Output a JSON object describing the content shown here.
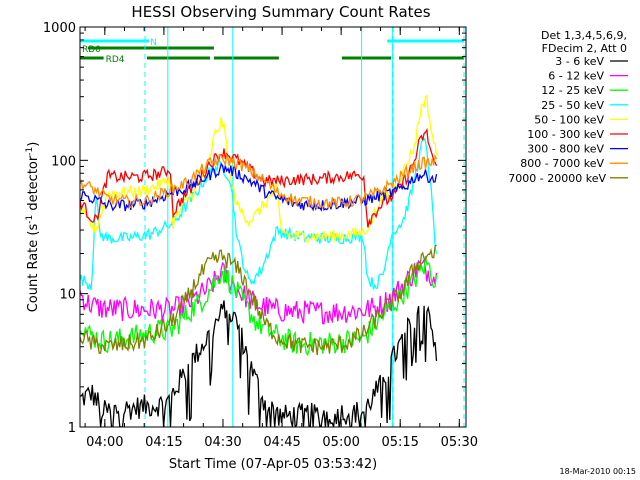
{
  "chart_data": {
    "type": "line",
    "title": "HESSI Observing Summary Count Rates",
    "xlabel": "Start Time (07-Apr-05 03:53:42)",
    "ylabel": "Count Rate (s",
    "ylabel_sup1": "-1",
    "ylabel_mid": " detector",
    "ylabel_sup2": "-1",
    "ylabel_end": ")",
    "yscale": "log",
    "xlim_min": [
      0,
      98
    ],
    "ylim": [
      1,
      1000
    ],
    "ytick_values": [
      1,
      10,
      100,
      1000
    ],
    "ytick_labels": [
      "1",
      "10",
      "100",
      "1000"
    ],
    "xtick_values": [
      6.3,
      21.3,
      36.3,
      51.3,
      66.3,
      81.3,
      96.3
    ],
    "xtick_labels": [
      "04:00",
      "04:15",
      "04:30",
      "04:45",
      "05:00",
      "05:15",
      "05:30"
    ],
    "timestamp": "18-Mar-2010 00:15",
    "legend_header": [
      "Det 1,3,4,5,6,9,",
      "FDecim 2, Att 0"
    ],
    "flags": [
      {
        "label": "N",
        "color": "#00ffff",
        "segments": [
          [
            0,
            17.5
          ],
          [
            78,
            97.5
          ]
        ],
        "label_at": 17.8
      },
      {
        "label": "RD0",
        "color": "#008000",
        "segments": [
          [
            2,
            34
          ]
        ],
        "label_at": 0.5,
        "gap_label": true
      },
      {
        "label": "RD4",
        "color": "#008000",
        "segments": [
          [
            0,
            6
          ],
          [
            17,
            33
          ],
          [
            34,
            50.5
          ],
          [
            66.5,
            79
          ],
          [
            81,
            97.5
          ]
        ],
        "label_at": 6.5
      }
    ],
    "saa_lines_solid": [
      0,
      22.3,
      38.8,
      71.5,
      79.3
    ],
    "saa_lines_dashed": [
      16.5,
      79.5,
      97.5
    ],
    "series": [
      {
        "name": "3 - 6 keV",
        "color": "#000000",
        "points": [
          [
            0,
            1.6
          ],
          [
            3,
            1.8
          ],
          [
            6,
            1.3
          ],
          [
            22,
            1.5
          ],
          [
            28,
            3
          ],
          [
            33,
            5
          ],
          [
            37,
            8
          ],
          [
            40,
            6
          ],
          [
            43,
            3
          ],
          [
            47,
            1.5
          ],
          [
            51,
            1.2
          ],
          [
            72,
            1.3
          ],
          [
            76,
            2
          ],
          [
            80,
            3.5
          ],
          [
            84,
            6
          ],
          [
            87,
            9
          ],
          [
            89,
            7
          ],
          [
            90.5,
            3
          ]
        ]
      },
      {
        "name": "6 - 12 keV",
        "color": "#ff00ff",
        "points": [
          [
            0,
            10
          ],
          [
            2,
            8.5
          ],
          [
            5,
            7.8
          ],
          [
            10,
            7.6
          ],
          [
            20,
            7.6
          ],
          [
            23,
            7.5
          ],
          [
            27,
            8.2
          ],
          [
            31,
            10
          ],
          [
            34,
            12
          ],
          [
            36,
            14.5
          ],
          [
            38,
            12.5
          ],
          [
            41,
            10
          ],
          [
            45,
            8.3
          ],
          [
            50,
            7.5
          ],
          [
            55,
            7.3
          ],
          [
            65,
            7.3
          ],
          [
            72,
            7.5
          ],
          [
            76,
            8
          ],
          [
            80,
            10
          ],
          [
            83,
            12.5
          ],
          [
            86,
            16
          ],
          [
            88,
            15
          ],
          [
            90.5,
            13
          ]
        ]
      },
      {
        "name": "12 - 25 keV",
        "color": "#00ff00",
        "points": [
          [
            0,
            6.5
          ],
          [
            2,
            5
          ],
          [
            6,
            4.4
          ],
          [
            12,
            4.6
          ],
          [
            20,
            5.3
          ],
          [
            23,
            5.2
          ],
          [
            27,
            7
          ],
          [
            31,
            9
          ],
          [
            34,
            12
          ],
          [
            36,
            15
          ],
          [
            38,
            12.5
          ],
          [
            41,
            9
          ],
          [
            45,
            6
          ],
          [
            50,
            4.8
          ],
          [
            55,
            4.2
          ],
          [
            65,
            4.3
          ],
          [
            72,
            4.6
          ],
          [
            76,
            6.5
          ],
          [
            80,
            8.5
          ],
          [
            83,
            11
          ],
          [
            86,
            14
          ],
          [
            88,
            17
          ],
          [
            90.5,
            12
          ]
        ]
      },
      {
        "name": "25 - 50 keV",
        "color": "#00ffff",
        "points": [
          [
            0,
            13
          ],
          [
            2,
            12
          ],
          [
            3,
            11.5
          ],
          [
            4,
            60
          ],
          [
            5,
            28
          ],
          [
            7,
            26
          ],
          [
            12,
            26
          ],
          [
            18,
            28
          ],
          [
            22,
            32
          ],
          [
            23,
            33
          ],
          [
            25,
            38
          ],
          [
            28,
            50
          ],
          [
            30,
            60
          ],
          [
            32,
            75
          ],
          [
            34,
            88
          ],
          [
            36,
            90
          ],
          [
            38,
            75
          ],
          [
            39,
            45
          ],
          [
            40,
            25
          ],
          [
            42,
            15
          ],
          [
            43,
            12
          ],
          [
            46,
            15
          ],
          [
            50,
            30
          ],
          [
            51,
            29
          ],
          [
            55,
            27
          ],
          [
            62,
            26
          ],
          [
            65,
            26
          ],
          [
            72,
            27
          ],
          [
            73,
            13
          ],
          [
            75,
            11.5
          ],
          [
            77,
            14
          ],
          [
            79,
            28
          ],
          [
            82,
            35
          ],
          [
            84,
            55
          ],
          [
            86,
            100
          ],
          [
            87,
            140
          ],
          [
            88,
            125
          ],
          [
            89,
            65
          ],
          [
            90.5,
            18
          ]
        ]
      },
      {
        "name": "50 - 100 keV",
        "color": "#ffff00",
        "points": [
          [
            0,
            42
          ],
          [
            4,
            30
          ],
          [
            7,
            56
          ],
          [
            10,
            58
          ],
          [
            15,
            58
          ],
          [
            20,
            65
          ],
          [
            23,
            73
          ],
          [
            23.5,
            33
          ],
          [
            26,
            45
          ],
          [
            30,
            65
          ],
          [
            33,
            100
          ],
          [
            34,
            150
          ],
          [
            35,
            170
          ],
          [
            36,
            200
          ],
          [
            37,
            150
          ],
          [
            38,
            75
          ],
          [
            40,
            45
          ],
          [
            43,
            35
          ],
          [
            45,
            40
          ],
          [
            50,
            62
          ],
          [
            51,
            30
          ],
          [
            54,
            27
          ],
          [
            60,
            27
          ],
          [
            65,
            27
          ],
          [
            72,
            29
          ],
          [
            74,
            35
          ],
          [
            76,
            48
          ],
          [
            80,
            63
          ],
          [
            83,
            95
          ],
          [
            85,
            130
          ],
          [
            86,
            200
          ],
          [
            87,
            270
          ],
          [
            88,
            290
          ],
          [
            89,
            180
          ],
          [
            90.5,
            110
          ]
        ]
      },
      {
        "name": "100 - 300 keV",
        "color": "#ff0000",
        "points": [
          [
            0,
            50
          ],
          [
            2,
            40
          ],
          [
            4,
            35
          ],
          [
            7,
            76
          ],
          [
            10,
            75
          ],
          [
            15,
            75
          ],
          [
            20,
            79
          ],
          [
            23,
            86
          ],
          [
            23.5,
            40
          ],
          [
            26,
            52
          ],
          [
            30,
            70
          ],
          [
            33,
            95
          ],
          [
            36,
            115
          ],
          [
            38,
            110
          ],
          [
            40,
            100
          ],
          [
            43,
            85
          ],
          [
            47,
            70
          ],
          [
            50,
            70
          ],
          [
            51,
            70
          ],
          [
            55,
            72
          ],
          [
            60,
            72
          ],
          [
            65,
            75
          ],
          [
            72,
            78
          ],
          [
            73,
            34
          ],
          [
            76,
            45
          ],
          [
            80,
            56
          ],
          [
            83,
            75
          ],
          [
            85,
            100
          ],
          [
            86,
            130
          ],
          [
            87,
            150
          ],
          [
            88,
            160
          ],
          [
            89,
            120
          ],
          [
            90.5,
            85
          ]
        ]
      },
      {
        "name": "300 - 800 keV",
        "color": "#0000ff",
        "points": [
          [
            0,
            56
          ],
          [
            3,
            52
          ],
          [
            7,
            46
          ],
          [
            12,
            46
          ],
          [
            17,
            48
          ],
          [
            20,
            52
          ],
          [
            23,
            57
          ],
          [
            27,
            62
          ],
          [
            30,
            70
          ],
          [
            33,
            78
          ],
          [
            36,
            88
          ],
          [
            38,
            85
          ],
          [
            41,
            77
          ],
          [
            44,
            68
          ],
          [
            47,
            58
          ],
          [
            50,
            52
          ],
          [
            55,
            47
          ],
          [
            62,
            46
          ],
          [
            67,
            48
          ],
          [
            72,
            50
          ],
          [
            76,
            54
          ],
          [
            80,
            58
          ],
          [
            83,
            65
          ],
          [
            85,
            75
          ],
          [
            87,
            78
          ],
          [
            89,
            75
          ],
          [
            90.5,
            72
          ]
        ]
      },
      {
        "name": "800 - 7000 keV",
        "color": "#ff8c00",
        "points": [
          [
            0,
            68
          ],
          [
            3,
            62
          ],
          [
            7,
            52
          ],
          [
            12,
            49
          ],
          [
            17,
            50
          ],
          [
            20,
            55
          ],
          [
            23,
            60
          ],
          [
            27,
            68
          ],
          [
            30,
            80
          ],
          [
            33,
            95
          ],
          [
            36,
            102
          ],
          [
            38,
            100
          ],
          [
            41,
            92
          ],
          [
            44,
            80
          ],
          [
            47,
            70
          ],
          [
            50,
            58
          ],
          [
            55,
            50
          ],
          [
            62,
            48
          ],
          [
            67,
            48
          ],
          [
            72,
            52
          ],
          [
            76,
            58
          ],
          [
            80,
            70
          ],
          [
            83,
            82
          ],
          [
            85,
            90
          ],
          [
            87,
            95
          ],
          [
            89,
            96
          ],
          [
            90.5,
            98
          ]
        ]
      },
      {
        "name": "7000 - 20000 keV",
        "color": "#808000",
        "points": [
          [
            0,
            5
          ],
          [
            3,
            4.2
          ],
          [
            7,
            4
          ],
          [
            12,
            4.2
          ],
          [
            17,
            4.5
          ],
          [
            20,
            5.2
          ],
          [
            23,
            6
          ],
          [
            27,
            9
          ],
          [
            30,
            13
          ],
          [
            33,
            17
          ],
          [
            36,
            19
          ],
          [
            38,
            17.5
          ],
          [
            41,
            14
          ],
          [
            44,
            9
          ],
          [
            47,
            6
          ],
          [
            50,
            4.8
          ],
          [
            55,
            4.1
          ],
          [
            62,
            4
          ],
          [
            67,
            4.2
          ],
          [
            72,
            5
          ],
          [
            76,
            7
          ],
          [
            80,
            9
          ],
          [
            83,
            12
          ],
          [
            85,
            16
          ],
          [
            87,
            19
          ],
          [
            89,
            20
          ],
          [
            90.5,
            20
          ]
        ]
      }
    ]
  }
}
